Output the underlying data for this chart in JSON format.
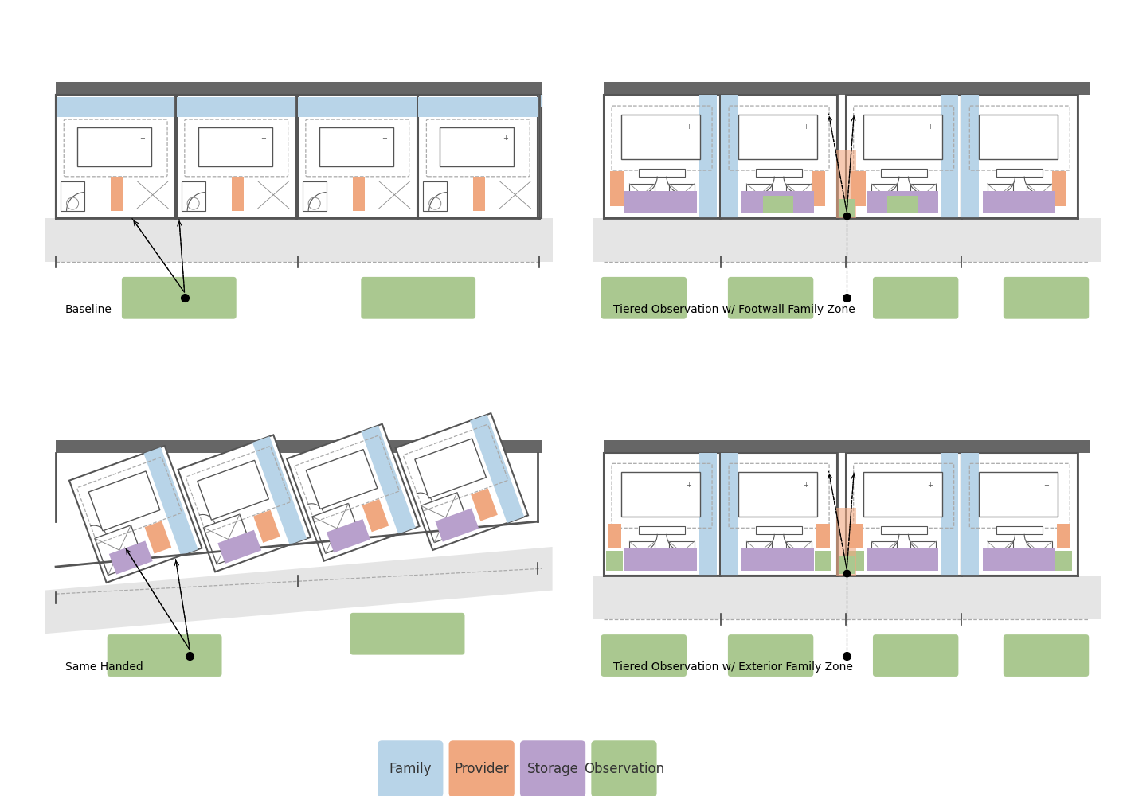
{
  "background_color": "#ffffff",
  "title_fontsize": 10,
  "legend_fontsize": 12,
  "colors": {
    "family_blue": "#b8d4e8",
    "provider_orange": "#f0a880",
    "storage_purple": "#b8a0cc",
    "observation_green": "#aac890",
    "wall_dark": "#555555",
    "wall_med": "#888888",
    "corridor_bg": "#e5e5e5",
    "room_bg": "#ffffff",
    "dashed_gray": "#aaaaaa",
    "outer_wall": "#666666",
    "tick_color": "#444444"
  },
  "labels": {
    "top_left": "Baseline",
    "top_right": "Tiered Observation w/ Footwall Family Zone",
    "bottom_left": "Same Handed",
    "bottom_right": "Tiered Observation w/ Exterior Family Zone"
  },
  "legend_items": [
    {
      "label": "Family",
      "color": "#b8d4e8"
    },
    {
      "label": "Provider",
      "color": "#f0a880"
    },
    {
      "label": "Storage",
      "color": "#b8a0cc"
    },
    {
      "label": "Observation",
      "color": "#aac890"
    }
  ]
}
